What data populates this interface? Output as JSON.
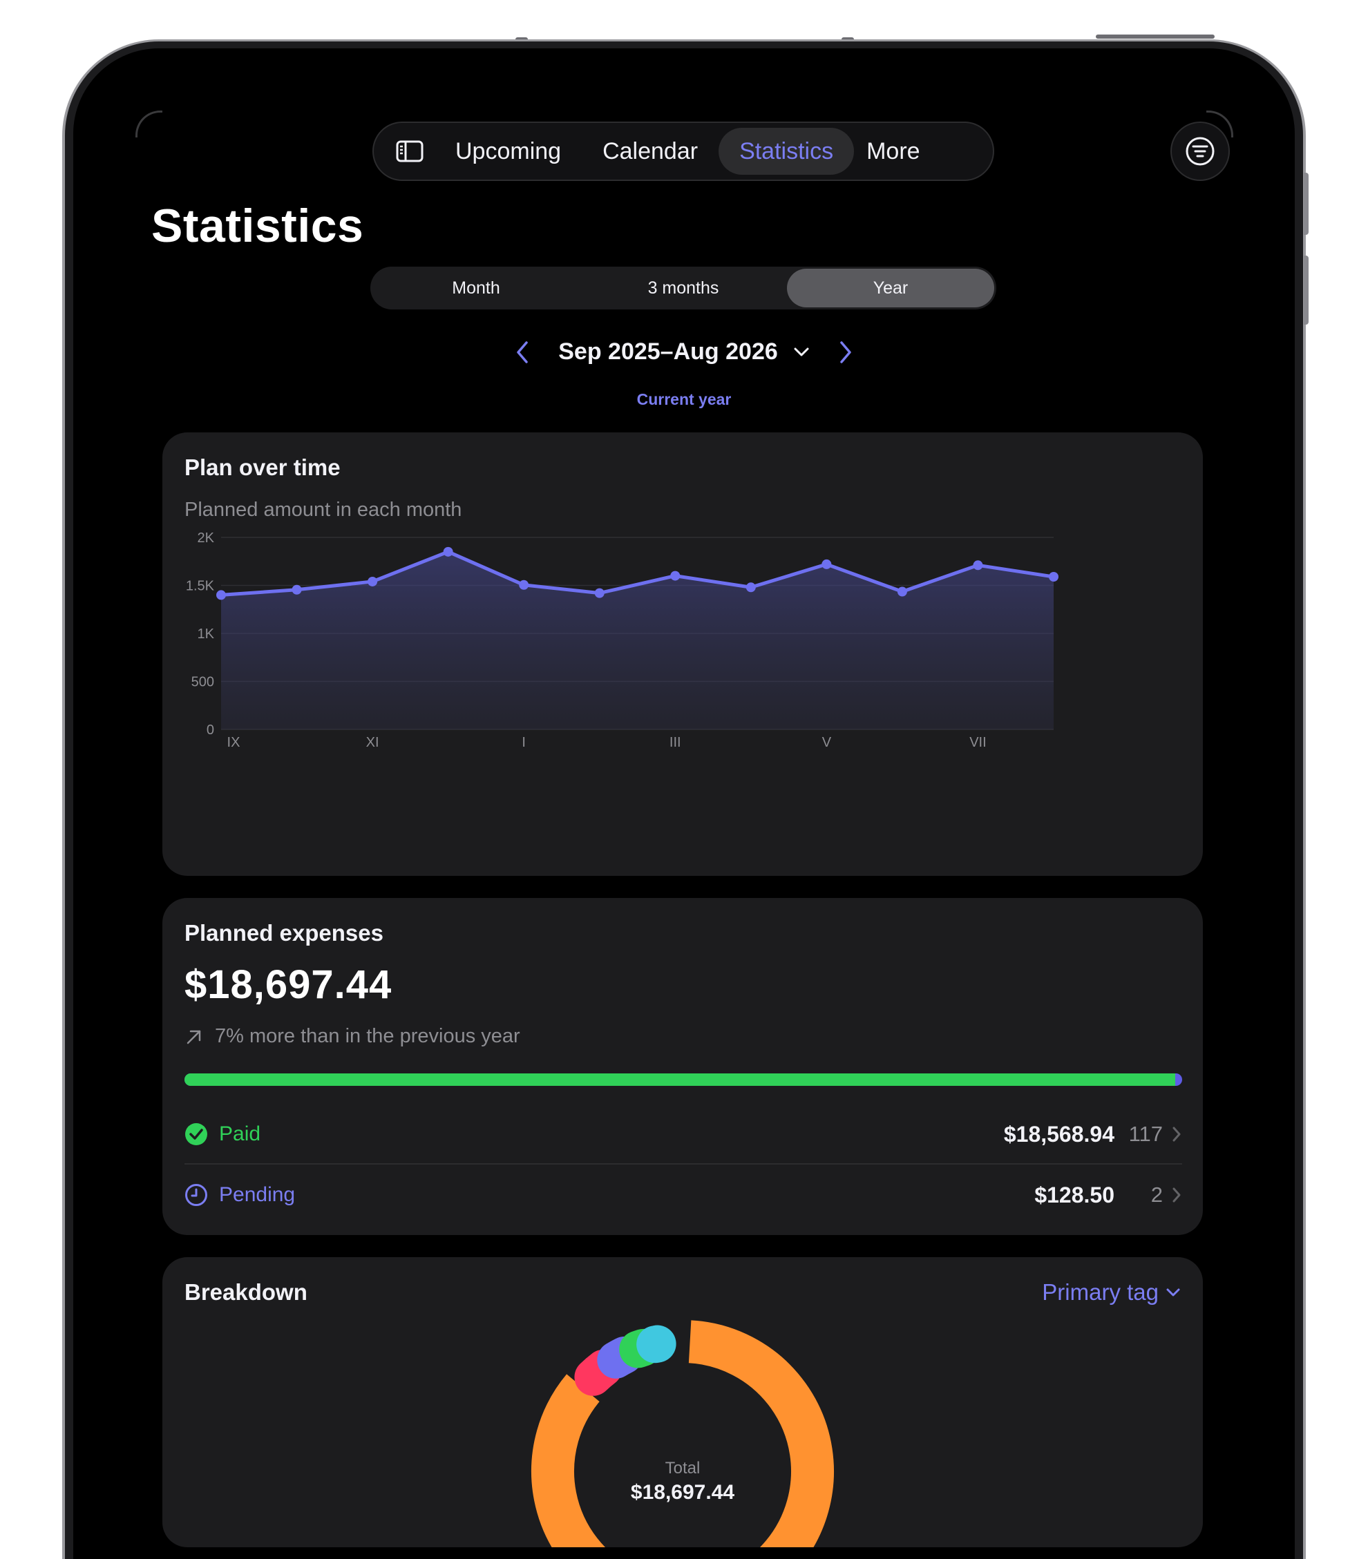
{
  "nav": {
    "items": [
      {
        "label": "Upcoming"
      },
      {
        "label": "Calendar"
      },
      {
        "label": "Statistics",
        "active": true
      },
      {
        "label": "More"
      }
    ]
  },
  "page": {
    "title": "Statistics"
  },
  "segments": [
    {
      "label": "Month"
    },
    {
      "label": "3 months"
    },
    {
      "label": "Year",
      "active": true
    }
  ],
  "period": {
    "label": "Sep 2025–Aug 2026",
    "subtitle": "Current year"
  },
  "plan_card": {
    "title": "Plan over time",
    "subtitle": "Planned amount in each month"
  },
  "chart_data": {
    "type": "area",
    "title": "Plan over time",
    "subtitle": "Planned amount in each month",
    "x": [
      "IX",
      "X",
      "XI",
      "XII",
      "I",
      "II",
      "III",
      "IV",
      "V",
      "VI",
      "VII",
      "VIII"
    ],
    "x_tick_labels": [
      "IX",
      "XI",
      "I",
      "III",
      "V",
      "VII"
    ],
    "y_tick_labels": [
      "0",
      "500",
      "1K",
      "1.5K",
      "2K"
    ],
    "ylim": [
      0,
      2000
    ],
    "series": [
      {
        "values": [
          1400,
          1455,
          1540,
          1850,
          1505,
          1420,
          1600,
          1480,
          1720,
          1435,
          1710,
          1590
        ]
      }
    ],
    "grid": true,
    "color": "#6e70f0"
  },
  "expenses_card": {
    "title": "Planned expenses",
    "amount": "$18,697.44",
    "delta": "7% more than in the previous year",
    "paid_fraction": 0.993,
    "rows": [
      {
        "label": "Paid",
        "amount": "$18,568.94",
        "count": "117",
        "color": "#30d158"
      },
      {
        "label": "Pending",
        "amount": "$128.50",
        "count": "2",
        "color": "#7b7ef2"
      }
    ]
  },
  "breakdown_card": {
    "title": "Breakdown",
    "selector": "Primary tag",
    "total_label": "Total",
    "total_value": "$18,697.44",
    "segments": [
      {
        "color": "#ff9230",
        "share": 0.87
      },
      {
        "color": "#ff375f",
        "share": 0.035
      },
      {
        "color": "#6e70f0",
        "share": 0.03
      },
      {
        "color": "#30d158",
        "share": 0.025
      },
      {
        "color": "#40c8e0",
        "share": 0.015
      }
    ]
  }
}
